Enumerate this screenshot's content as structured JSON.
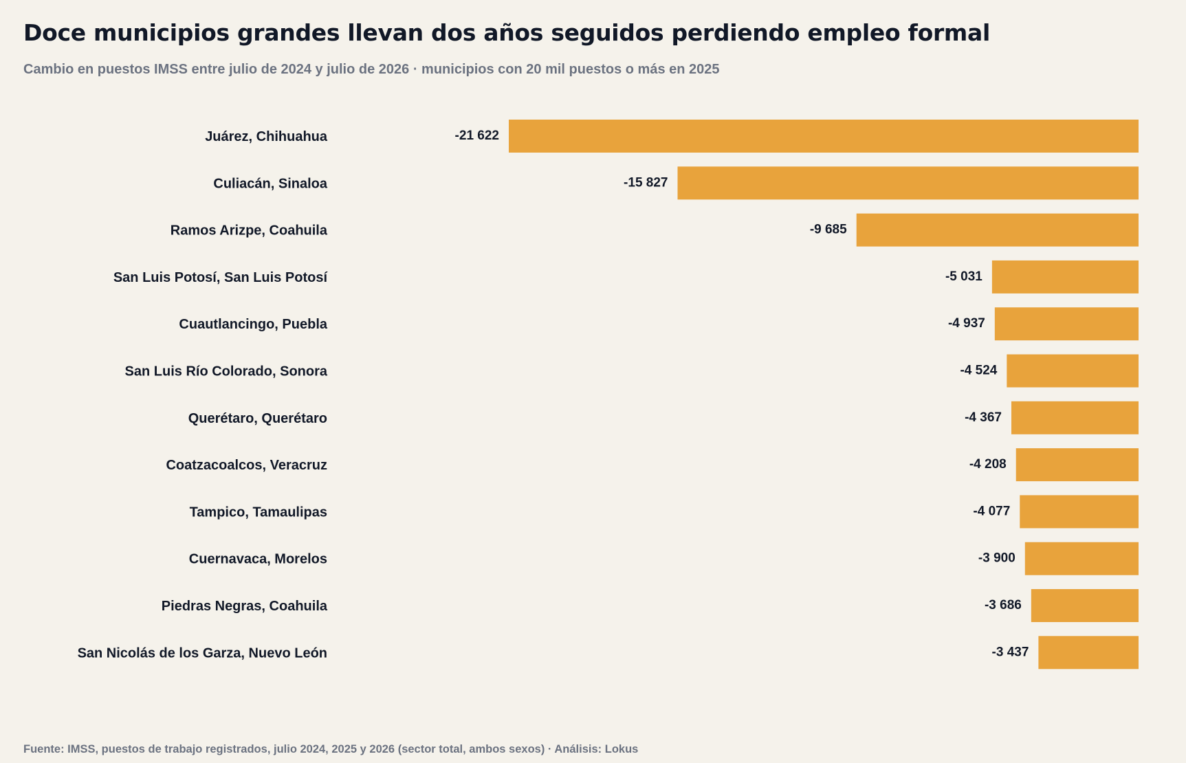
{
  "title": "Doce municipios grandes llevan dos años seguidos perdiendo empleo formal",
  "subtitle": "Cambio en puestos IMSS entre julio de 2024 y julio de 2026 · municipios con 20 mil puestos o más en 2025",
  "footer": "Fuente: IMSS, puestos de trabajo registrados, julio 2024, 2025 y 2026 (sector total, ambos sexos) · Análisis: Lokus",
  "colors": {
    "background": "#f5f2eb",
    "bar": "#e8a33c",
    "text": "#111827",
    "muted": "#6b7280"
  },
  "chart_data": {
    "type": "bar",
    "orientation": "horizontal",
    "grid": false,
    "title": "Doce municipios grandes llevan dos años seguidos perdiendo empleo formal",
    "subtitle": "Cambio en puestos IMSS entre julio de 2024 y julio de 2026 · municipios con 20 mil puestos o más en 2025",
    "categories": [
      "Juárez, Chihuahua",
      "Culiacán, Sinaloa",
      "Ramos Arizpe, Coahuila",
      "San Luis Potosí, San Luis Potosí",
      "Cuautlancingo, Puebla",
      "San Luis Río Colorado, Sonora",
      "Querétaro, Querétaro",
      "Coatzacoalcos, Veracruz",
      "Tampico, Tamaulipas",
      "Cuernavaca, Morelos",
      "Piedras Negras, Coahuila",
      "San Nicolás de los Garza, Nuevo León"
    ],
    "values": [
      -21622,
      -15827,
      -9685,
      -5031,
      -4937,
      -4524,
      -4367,
      -4208,
      -4077,
      -3900,
      -3686,
      -3437
    ],
    "value_labels": [
      "-21 622",
      "-15 827",
      "-9 685",
      "-5 031",
      "-4 937",
      "-4 524",
      "-4 367",
      "-4 208",
      "-4 077",
      "-3 900",
      "-3 686",
      "-3 437"
    ],
    "xlim": [
      -21622,
      0
    ]
  }
}
